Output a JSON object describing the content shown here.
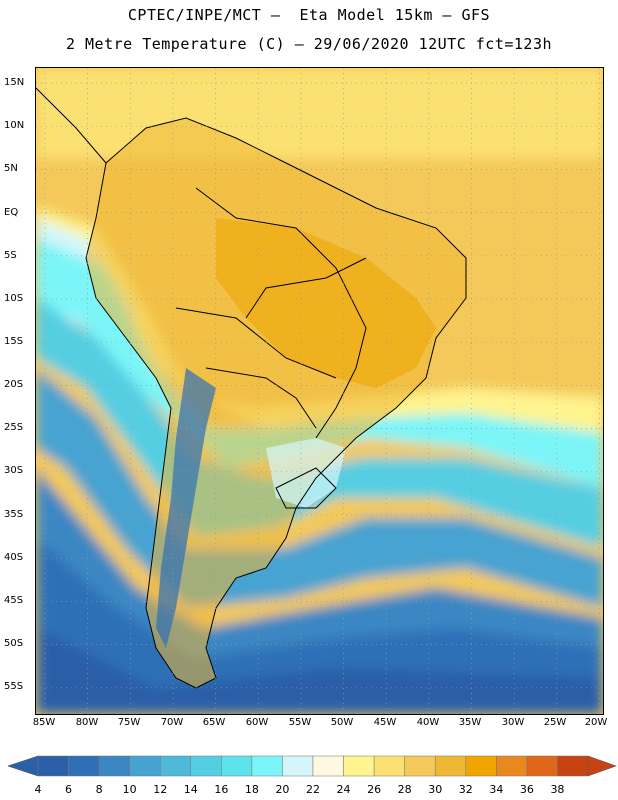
{
  "header": {
    "line1": "CPTEC/INPE/MCT –  Eta Model 15km – GFS",
    "line2": "2 Metre Temperature (C) – 29/06/2020 12UTC fct=123h"
  },
  "map": {
    "lat_labels": [
      "15N",
      "10N",
      "5N",
      "EQ",
      "5S",
      "10S",
      "15S",
      "20S",
      "25S",
      "30S",
      "35S",
      "40S",
      "45S",
      "50S",
      "55S"
    ],
    "lon_labels": [
      "85W",
      "80W",
      "75W",
      "70W",
      "65W",
      "60W",
      "55W",
      "50W",
      "45W",
      "40W",
      "35W",
      "30W",
      "25W",
      "20W"
    ],
    "grid": "dotted"
  },
  "colorbar": {
    "labels": [
      "4",
      "6",
      "8",
      "10",
      "12",
      "14",
      "16",
      "18",
      "20",
      "22",
      "24",
      "26",
      "28",
      "30",
      "32",
      "34",
      "36",
      "38"
    ],
    "colors": [
      "#2b5fa8",
      "#2f6fb5",
      "#3a87c4",
      "#46a3d1",
      "#4fb9d9",
      "#55cee2",
      "#5ce3ec",
      "#7cf5f8",
      "#d4f6fb",
      "#fff8e1",
      "#fff48f",
      "#fbe172",
      "#f4c95a",
      "#efb834",
      "#efa400",
      "#e8881f",
      "#e0661a",
      "#c74412"
    ]
  }
}
